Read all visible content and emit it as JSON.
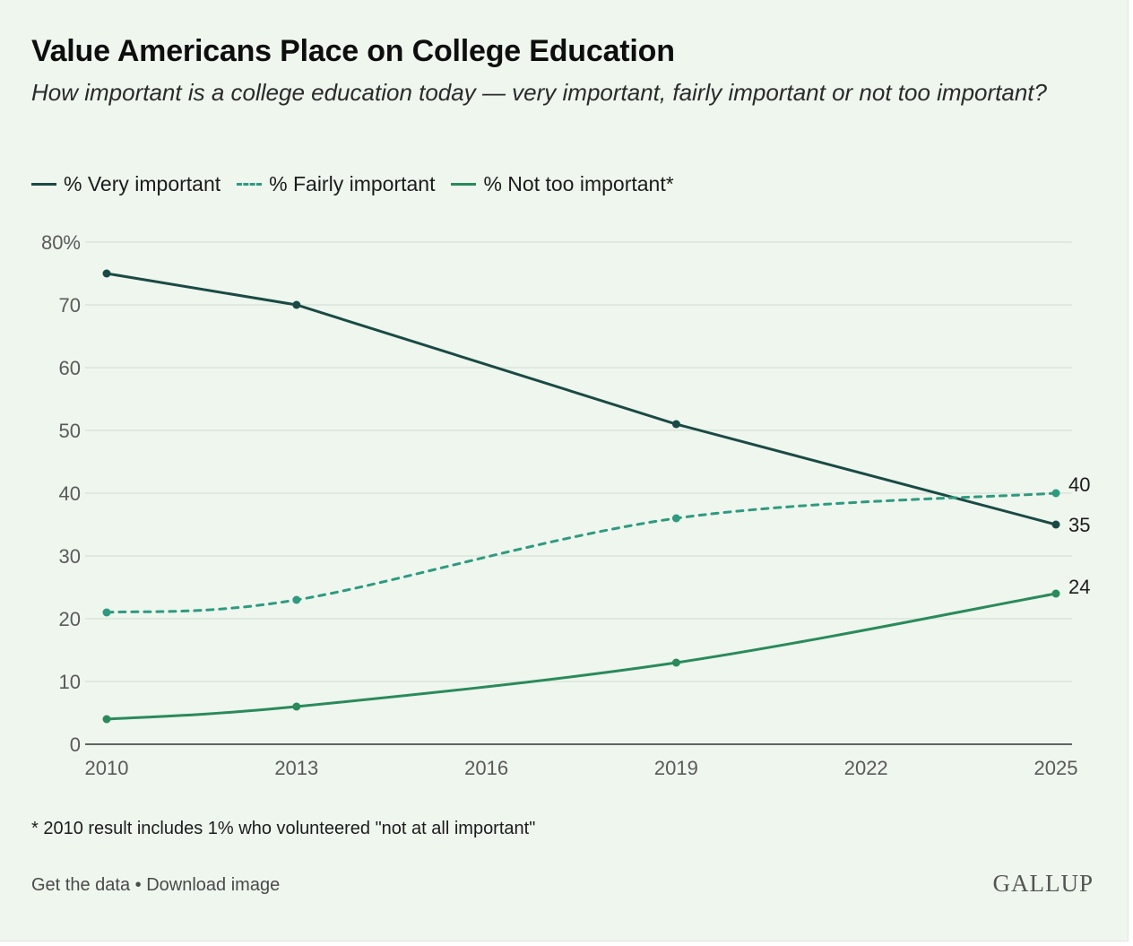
{
  "header": {
    "title": "Value Americans Place on College Education",
    "subtitle": "How important is a college education today — very important, fairly important or not too important?"
  },
  "legend": {
    "items": [
      {
        "label": "% Very important",
        "color": "#1a4a45",
        "style": "solid"
      },
      {
        "label": "% Fairly important",
        "color": "#2e9a7f",
        "style": "dashed"
      },
      {
        "label": "% Not too important*",
        "color": "#2a8a5a",
        "style": "solid"
      }
    ]
  },
  "chart_data": {
    "type": "line",
    "x": [
      2010,
      2013,
      2019,
      2025
    ],
    "x_ticks": [
      "2010",
      "2013",
      "2016",
      "2019",
      "2022",
      "2025"
    ],
    "x_tick_values": [
      2010,
      2013,
      2016,
      2019,
      2022,
      2025
    ],
    "y_ticks": [
      "0",
      "10",
      "20",
      "30",
      "40",
      "50",
      "60",
      "70",
      "80%"
    ],
    "y_tick_values": [
      0,
      10,
      20,
      30,
      40,
      50,
      60,
      70,
      80
    ],
    "xlim": [
      2010,
      2025
    ],
    "ylim": [
      0,
      80
    ],
    "grid": true,
    "legend_position": "top-left",
    "series": [
      {
        "name": "% Very important",
        "values": [
          75,
          70,
          51,
          35
        ],
        "color": "#1a4a45",
        "dashed": false,
        "end_label": "35"
      },
      {
        "name": "% Fairly important",
        "values": [
          21,
          23,
          36,
          40
        ],
        "color": "#2e9a7f",
        "dashed": true,
        "end_label": "40"
      },
      {
        "name": "% Not too important*",
        "values": [
          4,
          6,
          13,
          24
        ],
        "color": "#2a8a5a",
        "dashed": false,
        "end_label": "24"
      }
    ]
  },
  "footer": {
    "footnote": "* 2010 result includes 1% who volunteered \"not at all important\"",
    "get_data": "Get the data",
    "separator": "•",
    "download": "Download image",
    "logo": "GALLUP"
  }
}
